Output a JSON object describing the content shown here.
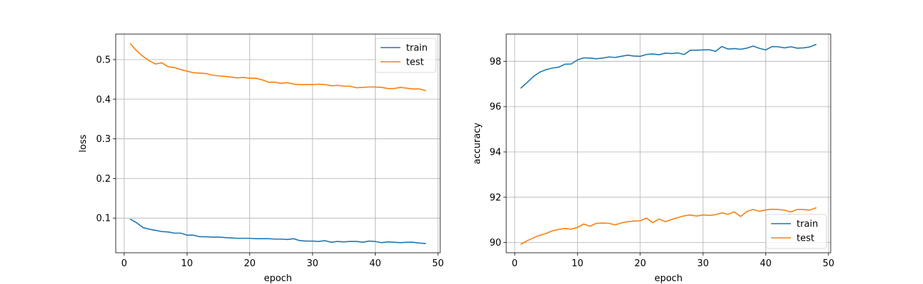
{
  "chart_data": [
    {
      "type": "line",
      "xlabel": "epoch",
      "ylabel": "loss",
      "xlim": [
        -1.35,
        50.35
      ],
      "ylim": [
        0.0125,
        0.5645
      ],
      "xticks": [
        0,
        10,
        20,
        30,
        40,
        50
      ],
      "yticks": [
        0.1,
        0.2,
        0.3,
        0.4,
        0.5
      ],
      "xtick_labels": [
        "0",
        "10",
        "20",
        "30",
        "40",
        "50"
      ],
      "ytick_labels": [
        "0.1",
        "0.2",
        "0.3",
        "0.4",
        "0.5"
      ],
      "grid": true,
      "legend": "top-right",
      "x": [
        1,
        2,
        3,
        4,
        5,
        6,
        7,
        8,
        9,
        10,
        11,
        12,
        13,
        14,
        15,
        16,
        17,
        18,
        19,
        20,
        21,
        22,
        23,
        24,
        25,
        26,
        27,
        28,
        29,
        30,
        31,
        32,
        33,
        34,
        35,
        36,
        37,
        38,
        39,
        40,
        41,
        42,
        43,
        44,
        45,
        46,
        47,
        48
      ],
      "series": [
        {
          "name": "train",
          "color": "#1f77b4",
          "values": [
            0.097,
            0.088,
            0.076,
            0.072,
            0.069,
            0.066,
            0.065,
            0.062,
            0.062,
            0.057,
            0.057,
            0.053,
            0.053,
            0.052,
            0.052,
            0.051,
            0.05,
            0.049,
            0.049,
            0.049,
            0.048,
            0.048,
            0.048,
            0.047,
            0.047,
            0.046,
            0.048,
            0.043,
            0.042,
            0.042,
            0.041,
            0.043,
            0.039,
            0.041,
            0.04,
            0.041,
            0.041,
            0.039,
            0.042,
            0.041,
            0.038,
            0.04,
            0.039,
            0.038,
            0.039,
            0.039,
            0.037,
            0.036
          ]
        },
        {
          "name": "test",
          "color": "#ff7f0e",
          "values": [
            0.54,
            0.522,
            0.508,
            0.497,
            0.489,
            0.492,
            0.482,
            0.48,
            0.475,
            0.471,
            0.467,
            0.466,
            0.465,
            0.461,
            0.459,
            0.458,
            0.456,
            0.454,
            0.455,
            0.453,
            0.453,
            0.449,
            0.443,
            0.443,
            0.44,
            0.442,
            0.438,
            0.437,
            0.437,
            0.437,
            0.438,
            0.437,
            0.434,
            0.435,
            0.433,
            0.433,
            0.429,
            0.43,
            0.431,
            0.431,
            0.43,
            0.427,
            0.427,
            0.43,
            0.428,
            0.426,
            0.426,
            0.422
          ]
        }
      ]
    },
    {
      "type": "line",
      "xlabel": "epoch",
      "ylabel": "accuracy",
      "xlim": [
        -1.35,
        50.35
      ],
      "ylim": [
        89.55,
        99.2
      ],
      "xticks": [
        0,
        10,
        20,
        30,
        40,
        50
      ],
      "yticks": [
        90,
        92,
        94,
        96,
        98
      ],
      "xtick_labels": [
        "0",
        "10",
        "20",
        "30",
        "40",
        "50"
      ],
      "ytick_labels": [
        "90",
        "92",
        "94",
        "96",
        "98"
      ],
      "grid": true,
      "legend": "bottom-right",
      "x": [
        1,
        2,
        3,
        4,
        5,
        6,
        7,
        8,
        9,
        10,
        11,
        12,
        13,
        14,
        15,
        16,
        17,
        18,
        19,
        20,
        21,
        22,
        23,
        24,
        25,
        26,
        27,
        28,
        29,
        30,
        31,
        32,
        33,
        34,
        35,
        36,
        37,
        38,
        39,
        40,
        41,
        42,
        43,
        44,
        45,
        46,
        47,
        48
      ],
      "series": [
        {
          "name": "train",
          "color": "#1f77b4",
          "values": [
            96.82,
            97.07,
            97.33,
            97.52,
            97.63,
            97.7,
            97.74,
            97.87,
            97.88,
            98.06,
            98.15,
            98.14,
            98.11,
            98.14,
            98.19,
            98.17,
            98.22,
            98.27,
            98.23,
            98.22,
            98.3,
            98.32,
            98.29,
            98.36,
            98.34,
            98.37,
            98.3,
            98.49,
            98.49,
            98.5,
            98.51,
            98.44,
            98.65,
            98.54,
            98.56,
            98.53,
            98.58,
            98.67,
            98.57,
            98.5,
            98.65,
            98.64,
            98.59,
            98.64,
            98.58,
            98.59,
            98.63,
            98.74
          ]
        },
        {
          "name": "test",
          "color": "#ff7f0e",
          "values": [
            89.93,
            90.08,
            90.21,
            90.32,
            90.4,
            90.52,
            90.58,
            90.62,
            90.59,
            90.67,
            90.82,
            90.72,
            90.85,
            90.86,
            90.85,
            90.78,
            90.87,
            90.92,
            90.95,
            90.96,
            91.08,
            90.88,
            91.04,
            90.92,
            91.02,
            91.1,
            91.18,
            91.22,
            91.17,
            91.22,
            91.2,
            91.23,
            91.31,
            91.25,
            91.35,
            91.15,
            91.37,
            91.46,
            91.38,
            91.44,
            91.47,
            91.46,
            91.43,
            91.35,
            91.46,
            91.46,
            91.43,
            91.53
          ]
        }
      ]
    }
  ]
}
